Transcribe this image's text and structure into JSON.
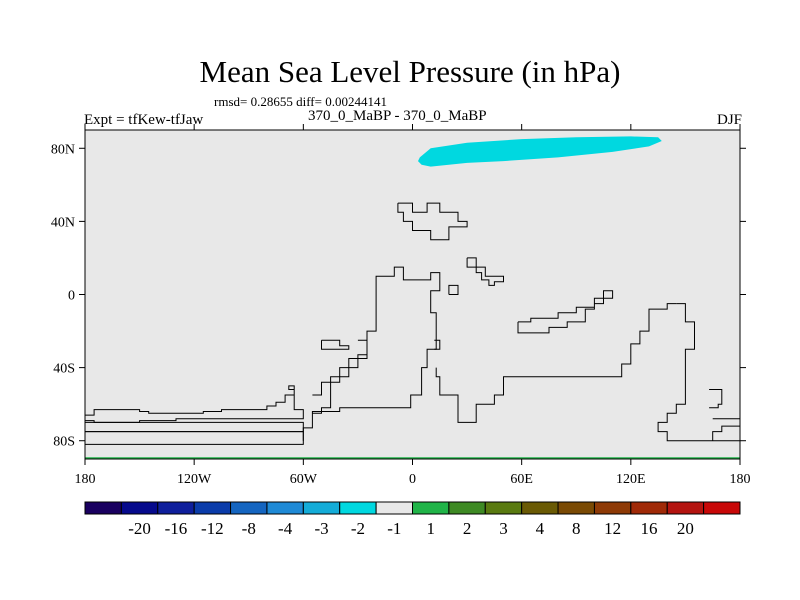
{
  "title": "Mean Sea Level Pressure (in hPa)",
  "stats": "rmsd= 0.28655 diff= 0.00244141",
  "left_label": "Expt = tfKew-tfJaw",
  "center_label": "370_0_MaBP - 370_0_MaBP",
  "right_label": "DJF",
  "map": {
    "lon_range": [
      -180,
      180
    ],
    "lat_range": [
      -90,
      90
    ],
    "background_color": "#e8e8e8",
    "coastline_color": "#000000",
    "x_ticks": [
      {
        "value": -180,
        "label": "180"
      },
      {
        "value": -120,
        "label": "120W"
      },
      {
        "value": -60,
        "label": "60W"
      },
      {
        "value": 0,
        "label": "0"
      },
      {
        "value": 60,
        "label": "60E"
      },
      {
        "value": 120,
        "label": "120E"
      },
      {
        "value": 180,
        "label": "180"
      }
    ],
    "y_ticks": [
      {
        "value": 80,
        "label": "80N"
      },
      {
        "value": 40,
        "label": "40N"
      },
      {
        "value": 0,
        "label": "0"
      },
      {
        "value": -40,
        "label": "40S"
      },
      {
        "value": -80,
        "label": "80S"
      }
    ],
    "anomaly_regions": [
      {
        "interval": "-2 to -1",
        "color": "#00d8e0",
        "polygon": [
          [
            4,
            75
          ],
          [
            10,
            80
          ],
          [
            30,
            83
          ],
          [
            60,
            85
          ],
          [
            90,
            86
          ],
          [
            120,
            86.5
          ],
          [
            135,
            86
          ],
          [
            137,
            84
          ],
          [
            130,
            81
          ],
          [
            110,
            78
          ],
          [
            80,
            75
          ],
          [
            50,
            73
          ],
          [
            30,
            72
          ],
          [
            10,
            70
          ],
          [
            5,
            71
          ],
          [
            3,
            73
          ]
        ]
      },
      {
        "interval": "1 to 2",
        "color": "#20b448",
        "polygon": [
          [
            -180,
            -89
          ],
          [
            180,
            -89
          ],
          [
            180,
            -90
          ],
          [
            -180,
            -90
          ]
        ]
      }
    ],
    "coastlines": [
      [
        [
          -180,
          -66
        ],
        [
          -175,
          -66
        ],
        [
          -175,
          -63
        ],
        [
          -150,
          -63
        ],
        [
          -150,
          -64
        ],
        [
          -145,
          -64
        ],
        [
          -145,
          -65
        ],
        [
          -115,
          -65
        ],
        [
          -115,
          -64
        ],
        [
          -105,
          -64
        ],
        [
          -105,
          -63
        ],
        [
          -80,
          -63
        ],
        [
          -80,
          -61
        ],
        [
          -75,
          -61
        ],
        [
          -75,
          -59
        ],
        [
          -70,
          -59
        ],
        [
          -70,
          -55
        ],
        [
          -65,
          -55
        ],
        [
          -65,
          -52
        ],
        [
          -68,
          -52
        ],
        [
          -68,
          -50
        ],
        [
          -65,
          -50
        ],
        [
          -65,
          -63
        ],
        [
          -60,
          -63
        ],
        [
          -60,
          -68
        ],
        [
          -130,
          -68
        ],
        [
          -130,
          -69
        ],
        [
          -150,
          -69
        ],
        [
          -150,
          -70
        ],
        [
          -175,
          -70
        ],
        [
          -175,
          -69
        ],
        [
          -180,
          -69
        ]
      ],
      [
        [
          -180,
          -75
        ],
        [
          -60,
          -75
        ],
        [
          -60,
          -70
        ],
        [
          -180,
          -70
        ]
      ],
      [
        [
          -180,
          -82
        ],
        [
          -60,
          -82
        ],
        [
          -60,
          -75
        ],
        [
          -180,
          -75
        ]
      ],
      [
        [
          -60,
          -80
        ],
        [
          -60,
          -73
        ],
        [
          -55,
          -73
        ],
        [
          -55,
          -65
        ],
        [
          -50,
          -65
        ],
        [
          -50,
          -62
        ],
        [
          -45,
          -62
        ],
        [
          -45,
          -45
        ],
        [
          -35,
          -45
        ],
        [
          -35,
          -35
        ],
        [
          -25,
          -35
        ],
        [
          -25,
          -20
        ],
        [
          -20,
          -20
        ],
        [
          -20,
          10
        ],
        [
          -10,
          10
        ],
        [
          -10,
          15
        ],
        [
          -5,
          15
        ],
        [
          -5,
          8
        ],
        [
          10,
          8
        ],
        [
          10,
          12
        ],
        [
          15,
          12
        ],
        [
          15,
          2
        ],
        [
          10,
          2
        ],
        [
          10,
          -10
        ],
        [
          13,
          -10
        ],
        [
          13,
          -30
        ],
        [
          8,
          -30
        ],
        [
          8,
          -40
        ],
        [
          5,
          -40
        ],
        [
          5,
          -55
        ],
        [
          -1,
          -55
        ],
        [
          -1,
          -62
        ],
        [
          -40,
          -62
        ],
        [
          -40,
          -64
        ],
        [
          -55,
          -64
        ],
        [
          -55,
          -73
        ]
      ],
      [
        [
          -30,
          -25
        ],
        [
          -25,
          -25
        ],
        [
          -25,
          -33
        ],
        [
          -30,
          -33
        ],
        [
          -30,
          -40
        ],
        [
          -40,
          -40
        ],
        [
          -40,
          -48
        ],
        [
          -50,
          -48
        ],
        [
          -50,
          -55
        ],
        [
          -55,
          -55
        ]
      ],
      [
        [
          -50,
          -25
        ],
        [
          -40,
          -25
        ],
        [
          -40,
          -28
        ],
        [
          -35,
          -28
        ],
        [
          -35,
          -30
        ],
        [
          -50,
          -30
        ],
        [
          -50,
          -25
        ]
      ],
      [
        [
          12,
          -25
        ],
        [
          15,
          -25
        ],
        [
          15,
          -30
        ],
        [
          12,
          -30
        ]
      ],
      [
        [
          20,
          0
        ],
        [
          25,
          0
        ],
        [
          25,
          5
        ],
        [
          20,
          5
        ],
        [
          20,
          0
        ]
      ],
      [
        [
          58,
          -15
        ],
        [
          65,
          -15
        ],
        [
          65,
          -13
        ],
        [
          80,
          -13
        ],
        [
          80,
          -10
        ],
        [
          90,
          -10
        ],
        [
          90,
          -7
        ],
        [
          100,
          -7
        ],
        [
          100,
          -5
        ],
        [
          105,
          -5
        ],
        [
          105,
          -2
        ],
        [
          110,
          -2
        ],
        [
          110,
          2
        ],
        [
          105,
          2
        ],
        [
          105,
          -2
        ],
        [
          100,
          -2
        ],
        [
          100,
          -8
        ],
        [
          95,
          -8
        ],
        [
          95,
          -15
        ],
        [
          85,
          -15
        ],
        [
          85,
          -18
        ],
        [
          75,
          -18
        ],
        [
          75,
          -21
        ],
        [
          58,
          -21
        ],
        [
          58,
          -15
        ]
      ],
      [
        [
          145,
          -5
        ],
        [
          140,
          -5
        ],
        [
          140,
          -8
        ],
        [
          130,
          -8
        ],
        [
          130,
          -20
        ],
        [
          125,
          -20
        ],
        [
          125,
          -27
        ],
        [
          120,
          -27
        ],
        [
          120,
          -38
        ],
        [
          115,
          -38
        ],
        [
          115,
          -45
        ],
        [
          50,
          -45
        ],
        [
          50,
          -55
        ],
        [
          45,
          -55
        ],
        [
          45,
          -60
        ],
        [
          35,
          -60
        ],
        [
          35,
          -70
        ],
        [
          25,
          -70
        ],
        [
          25,
          -55
        ],
        [
          15,
          -55
        ],
        [
          15,
          -45
        ],
        [
          13,
          -45
        ],
        [
          13,
          -40
        ]
      ],
      [
        [
          145,
          -5
        ],
        [
          150,
          -5
        ],
        [
          150,
          -15
        ],
        [
          155,
          -15
        ],
        [
          155,
          -30
        ],
        [
          150,
          -30
        ],
        [
          150,
          -60
        ],
        [
          145,
          -60
        ],
        [
          145,
          -65
        ],
        [
          140,
          -65
        ],
        [
          140,
          -70
        ],
        [
          135,
          -70
        ],
        [
          135,
          -75
        ],
        [
          140,
          -75
        ],
        [
          140,
          -80
        ],
        [
          180,
          -80
        ]
      ],
      [
        [
          163,
          -52
        ],
        [
          170,
          -52
        ],
        [
          170,
          -60
        ],
        [
          168,
          -60
        ],
        [
          168,
          -62
        ],
        [
          163,
          -62
        ]
      ],
      [
        [
          165,
          -68
        ],
        [
          180,
          -68
        ]
      ],
      [
        [
          180,
          -72
        ],
        [
          170,
          -72
        ],
        [
          170,
          -75
        ],
        [
          165,
          -75
        ],
        [
          165,
          -80
        ]
      ],
      [
        [
          -8,
          50
        ],
        [
          0,
          50
        ],
        [
          0,
          45
        ],
        [
          8,
          45
        ],
        [
          8,
          50
        ],
        [
          15,
          50
        ],
        [
          15,
          45
        ],
        [
          25,
          45
        ],
        [
          25,
          40
        ],
        [
          30,
          40
        ],
        [
          30,
          37
        ],
        [
          20,
          37
        ],
        [
          20,
          30
        ],
        [
          10,
          30
        ],
        [
          10,
          35
        ],
        [
          0,
          35
        ],
        [
          0,
          40
        ],
        [
          -5,
          40
        ],
        [
          -5,
          45
        ],
        [
          -8,
          45
        ],
        [
          -8,
          50
        ]
      ],
      [
        [
          30,
          20
        ],
        [
          35,
          20
        ],
        [
          35,
          15
        ],
        [
          40,
          15
        ],
        [
          40,
          10
        ],
        [
          50,
          10
        ],
        [
          50,
          7
        ],
        [
          45,
          7
        ],
        [
          45,
          5
        ],
        [
          42,
          5
        ],
        [
          42,
          8
        ],
        [
          38,
          8
        ],
        [
          38,
          12
        ],
        [
          35,
          12
        ],
        [
          35,
          15
        ],
        [
          30,
          15
        ],
        [
          30,
          20
        ]
      ]
    ]
  },
  "colorbar": {
    "colors": [
      "#1a0060",
      "#060a8c",
      "#0f1f9c",
      "#0b3caa",
      "#1565c0",
      "#1f8ad6",
      "#14acd8",
      "#00d8e0",
      "#e8e8e8",
      "#20b448",
      "#3e8a24",
      "#597a10",
      "#6a5a04",
      "#7a4a04",
      "#8e3a06",
      "#a02a08",
      "#b41410",
      "#c80808"
    ],
    "labels": [
      "-20",
      "-16",
      "-12",
      "-8",
      "-4",
      "-3",
      "-2",
      "-1",
      "1",
      "2",
      "3",
      "4",
      "8",
      "12",
      "16",
      "20"
    ]
  }
}
